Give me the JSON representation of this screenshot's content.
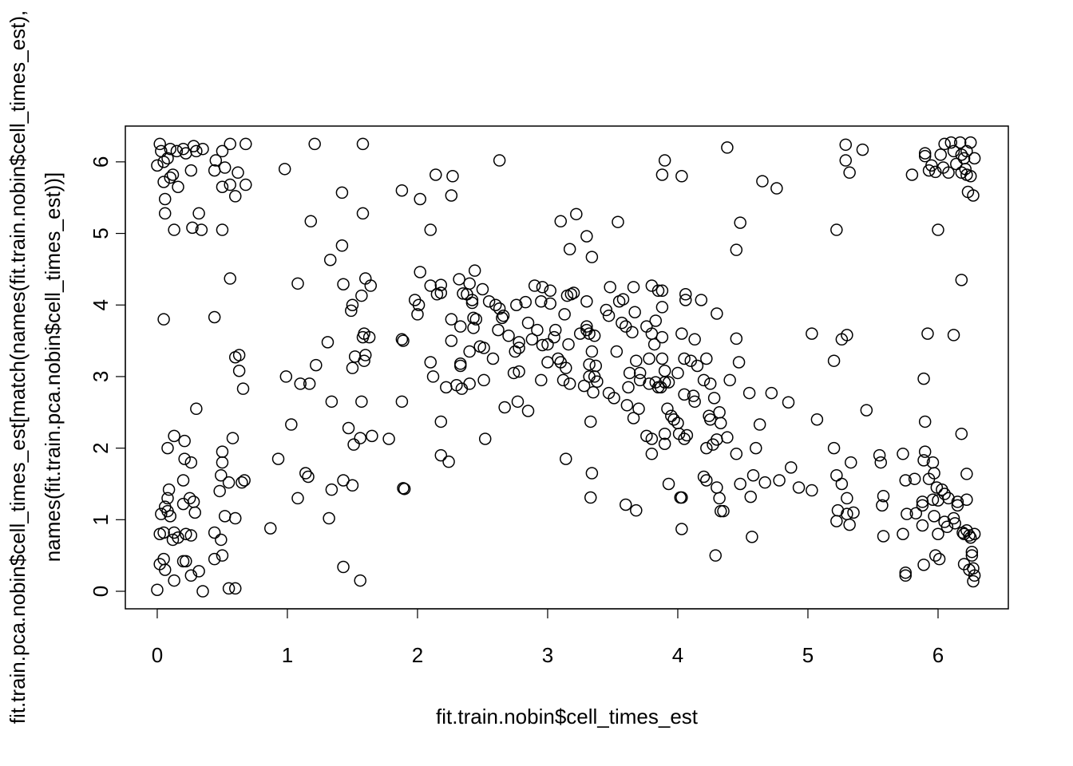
{
  "chart_data": {
    "type": "scatter",
    "xlabel": "fit.train.nobin$cell_times_est",
    "ylabel": [
      "fit.train.pca.nobin$cell_times_est[match(names(fit.train.nobin$cell_times_est),",
      "names(fit.train.pca.nobin$cell_times_est))]"
    ],
    "xlim": [
      -0.245,
      6.54
    ],
    "ylim": [
      -0.245,
      6.5
    ],
    "xticks": [
      0,
      1,
      2,
      3,
      4,
      5,
      6
    ],
    "yticks": [
      0,
      1,
      2,
      3,
      4,
      5,
      6
    ],
    "color": "#000000",
    "grid": false,
    "x": [
      0.02,
      0.03,
      0.05,
      0.0,
      0.1,
      0.08,
      0.15,
      0.2,
      0.22,
      0.28,
      0.3,
      0.35,
      0.26,
      0.12,
      0.05,
      0.1,
      0.16,
      0.06,
      0.06,
      0.13,
      0.27,
      0.32,
      0.34,
      0.45,
      0.44,
      0.5,
      0.56,
      0.68,
      0.52,
      0.5,
      0.56,
      0.6,
      0.62,
      0.68,
      0.5,
      0.56,
      0.05,
      0.44,
      0.0,
      0.02,
      0.05,
      0.06,
      0.02,
      0.05,
      0.03,
      0.06,
      0.08,
      0.08,
      0.09,
      0.1,
      0.08,
      0.13,
      0.13,
      0.12,
      0.16,
      0.13,
      0.2,
      0.22,
      0.22,
      0.26,
      0.2,
      0.25,
      0.28,
      0.29,
      0.2,
      0.21,
      0.26,
      0.21,
      0.3,
      0.26,
      0.32,
      0.35,
      0.44,
      0.44,
      0.49,
      0.5,
      0.48,
      0.49,
      0.5,
      0.5,
      0.52,
      0.55,
      0.58,
      0.6,
      0.55,
      0.6,
      0.6,
      0.63,
      0.63,
      0.66,
      0.65,
      0.67,
      0.87,
      0.93,
      0.98,
      0.99,
      1.03,
      1.08,
      1.08,
      1.1,
      1.14,
      1.16,
      1.17,
      1.18,
      1.21,
      1.22,
      1.31,
      1.32,
      1.33,
      1.34,
      1.34,
      1.42,
      1.42,
      1.43,
      1.43,
      1.43,
      1.47,
      1.49,
      1.5,
      1.5,
      1.5,
      1.51,
      1.52,
      1.56,
      1.56,
      1.57,
      1.58,
      1.58,
      1.57,
      1.58,
      1.59,
      1.6,
      1.6,
      1.59,
      1.63,
      1.64,
      1.65,
      1.78,
      1.88,
      1.88,
      1.88,
      1.89,
      1.89,
      1.9,
      1.98,
      2.0,
      2.01,
      2.02,
      2.02,
      2.1,
      2.1,
      2.1,
      2.12,
      2.14,
      2.15,
      2.18,
      2.18,
      2.18,
      2.18,
      2.22,
      2.24,
      2.26,
      2.26,
      2.26,
      2.27,
      2.3,
      2.32,
      2.33,
      2.33,
      2.33,
      2.34,
      2.35,
      2.38,
      2.4,
      2.4,
      2.42,
      2.42,
      2.43,
      2.43,
      2.44,
      2.45,
      2.4,
      2.48,
      2.5,
      2.51,
      2.51,
      2.52,
      2.55,
      2.58,
      2.6,
      2.62,
      2.63,
      2.63,
      2.65,
      2.66,
      2.67,
      2.7,
      2.74,
      2.75,
      2.76,
      2.77,
      2.78,
      2.78,
      2.78,
      2.83,
      2.85,
      2.85,
      2.88,
      2.9,
      2.92,
      2.95,
      2.95,
      2.96,
      2.96,
      3.0,
      3.0,
      3.02,
      3.02,
      3.05,
      3.06,
      3.08,
      3.1,
      3.1,
      3.12,
      3.13,
      3.14,
      3.14,
      3.15,
      3.16,
      3.17,
      3.17,
      3.18,
      3.2,
      3.22,
      3.25,
      3.28,
      3.3,
      3.3,
      3.3,
      3.3,
      3.32,
      3.32,
      3.32,
      3.33,
      3.33,
      3.34,
      3.34,
      3.34,
      3.35,
      3.36,
      3.36,
      3.37,
      3.38,
      3.45,
      3.47,
      3.47,
      3.48,
      3.51,
      3.53,
      3.54,
      3.55,
      3.57,
      3.58,
      3.6,
      3.6,
      3.61,
      3.62,
      3.63,
      3.65,
      3.66,
      3.66,
      3.67,
      3.68,
      3.68,
      3.7,
      3.71,
      3.71,
      3.76,
      3.76,
      3.78,
      3.78,
      3.8,
      3.8,
      3.8,
      3.8,
      3.82,
      3.83,
      3.83,
      3.85,
      3.85,
      3.87,
      3.88,
      3.88,
      3.88,
      3.88,
      3.88,
      3.9,
      3.9,
      3.9,
      3.9,
      3.9,
      3.92,
      3.93,
      3.93,
      3.95,
      3.97,
      4.0,
      4.0,
      4.01,
      4.02,
      4.03,
      4.03,
      4.03,
      4.03,
      4.05,
      4.05,
      4.05,
      4.06,
      4.06,
      4.07,
      4.1,
      4.12,
      4.13,
      4.13,
      4.15,
      4.18,
      4.2,
      4.2,
      4.22,
      4.22,
      4.22,
      4.24,
      4.25,
      4.25,
      4.27,
      4.28,
      4.29,
      4.3,
      4.3,
      4.3,
      4.32,
      4.32,
      4.33,
      4.33,
      4.35,
      4.38,
      4.38,
      4.4,
      4.45,
      4.45,
      4.45,
      4.47,
      4.48,
      4.48,
      4.55,
      4.56,
      4.57,
      4.58,
      4.6,
      4.63,
      4.65,
      4.67,
      4.72,
      4.76,
      4.78,
      4.85,
      4.87,
      4.93,
      5.03,
      5.03,
      5.07,
      5.2,
      5.2,
      5.22,
      5.22,
      5.22,
      5.23,
      5.26,
      5.26,
      5.29,
      5.29,
      5.3,
      5.3,
      5.3,
      5.32,
      5.32,
      5.33,
      5.35,
      5.42,
      5.45,
      5.55,
      5.56,
      5.57,
      5.58,
      5.58,
      5.73,
      5.73,
      5.75,
      5.75,
      5.75,
      5.76,
      5.8,
      5.82,
      5.83,
      5.88,
      5.88,
      5.88,
      5.89,
      5.89,
      5.89,
      5.9,
      5.9,
      5.9,
      5.9,
      5.92,
      5.93,
      5.93,
      5.95,
      5.96,
      5.96,
      5.97,
      5.97,
      5.98,
      5.98,
      5.99,
      6.0,
      6.0,
      6.0,
      6.01,
      6.02,
      6.03,
      6.04,
      6.05,
      6.05,
      6.05,
      6.07,
      6.08,
      6.08,
      6.1,
      6.12,
      6.12,
      6.12,
      6.13,
      6.14,
      6.15,
      6.15,
      6.17,
      6.18,
      6.18,
      6.18,
      6.18,
      6.19,
      6.2,
      6.2,
      6.2,
      6.21,
      6.22,
      6.22,
      6.22,
      6.22,
      6.22,
      6.23,
      6.24,
      6.24,
      6.25,
      6.25,
      6.25,
      6.26,
      6.26,
      6.27,
      6.27,
      6.27,
      6.28,
      6.28,
      6.28
    ],
    "values": [
      6.25,
      6.15,
      6.0,
      5.95,
      6.18,
      6.05,
      6.15,
      6.18,
      6.12,
      6.22,
      6.15,
      6.18,
      5.88,
      5.82,
      5.72,
      5.78,
      5.65,
      5.48,
      5.28,
      5.05,
      5.08,
      5.28,
      5.05,
      6.02,
      5.88,
      6.15,
      6.25,
      6.25,
      5.92,
      5.65,
      5.68,
      5.52,
      5.85,
      5.68,
      5.05,
      4.37,
      3.8,
      3.83,
      0.02,
      0.38,
      0.45,
      0.3,
      0.8,
      0.82,
      1.08,
      1.18,
      1.12,
      1.3,
      1.42,
      1.05,
      2.0,
      2.17,
      0.82,
      0.72,
      0.75,
      0.15,
      0.42,
      0.42,
      0.8,
      0.78,
      1.22,
      1.3,
      1.25,
      1.1,
      1.55,
      1.85,
      1.8,
      2.1,
      2.55,
      0.22,
      0.28,
      0.0,
      0.45,
      0.82,
      0.72,
      0.5,
      1.4,
      1.62,
      1.8,
      1.95,
      1.05,
      1.52,
      2.14,
      1.02,
      0.04,
      0.04,
      3.27,
      3.3,
      3.08,
      2.83,
      1.52,
      1.55,
      0.88,
      1.85,
      5.9,
      3.0,
      2.33,
      1.3,
      4.3,
      2.9,
      1.65,
      1.6,
      2.9,
      5.17,
      6.25,
      3.16,
      3.48,
      1.02,
      4.63,
      1.42,
      2.65,
      5.57,
      4.83,
      4.29,
      1.55,
      0.34,
      2.28,
      3.92,
      4.0,
      3.12,
      1.48,
      2.05,
      3.28,
      0.15,
      2.14,
      4.13,
      5.28,
      6.25,
      2.65,
      3.55,
      3.6,
      4.37,
      3.3,
      3.22,
      3.55,
      4.27,
      2.17,
      2.13,
      5.6,
      2.65,
      3.52,
      3.5,
      1.44,
      1.43,
      4.07,
      3.87,
      4.0,
      4.46,
      5.48,
      4.27,
      5.05,
      3.2,
      3.0,
      5.82,
      4.15,
      4.28,
      4.17,
      2.37,
      1.9,
      2.85,
      1.81,
      3.5,
      3.8,
      5.53,
      5.8,
      2.88,
      4.36,
      3.7,
      3.15,
      3.18,
      2.83,
      4.16,
      4.15,
      4.3,
      3.35,
      4.07,
      4.03,
      3.82,
      3.68,
      4.48,
      3.8,
      2.9,
      3.42,
      4.22,
      3.4,
      2.95,
      2.13,
      4.05,
      3.25,
      4.0,
      3.65,
      6.02,
      3.95,
      3.82,
      3.85,
      2.57,
      3.57,
      3.05,
      3.35,
      4.0,
      2.65,
      3.4,
      3.48,
      3.07,
      4.04,
      2.52,
      3.75,
      3.52,
      4.27,
      3.65,
      2.95,
      4.05,
      4.25,
      3.44,
      3.45,
      3.2,
      4.2,
      4.02,
      3.55,
      3.65,
      3.25,
      3.2,
      5.17,
      2.95,
      3.87,
      3.12,
      1.85,
      4.13,
      3.45,
      4.78,
      2.9,
      4.15,
      4.17,
      5.27,
      3.6,
      2.87,
      4.96,
      3.7,
      3.65,
      4.05,
      3.6,
      3.0,
      3.17,
      1.31,
      2.37,
      1.65,
      4.67,
      3.35,
      2.78,
      3.57,
      3.0,
      3.15,
      2.93,
      3.93,
      3.85,
      2.77,
      4.25,
      2.7,
      3.35,
      5.16,
      4.05,
      3.75,
      4.08,
      3.7,
      1.21,
      2.6,
      2.85,
      3.05,
      3.62,
      2.42,
      4.25,
      3.9,
      3.22,
      1.13,
      2.55,
      3.05,
      2.95,
      3.7,
      2.17,
      3.25,
      2.9,
      3.6,
      4.27,
      2.13,
      1.92,
      3.45,
      3.78,
      2.92,
      4.2,
      2.85,
      2.85,
      5.82,
      3.97,
      4.2,
      3.55,
      3.25,
      3.08,
      2.2,
      2.06,
      6.02,
      2.92,
      2.55,
      2.92,
      1.5,
      2.45,
      2.4,
      2.35,
      3.05,
      2.2,
      1.31,
      0.87,
      5.8,
      1.31,
      3.6,
      2.75,
      2.13,
      3.25,
      4.15,
      4.07,
      2.18,
      3.22,
      2.73,
      3.52,
      2.65,
      3.15,
      4.07,
      2.95,
      1.6,
      2.0,
      1.55,
      3.25,
      2.45,
      2.4,
      2.9,
      2.05,
      2.7,
      0.5,
      2.12,
      3.88,
      1.45,
      1.3,
      2.5,
      2.35,
      1.12,
      1.12,
      6.2,
      2.15,
      2.95,
      3.53,
      4.77,
      1.92,
      3.2,
      1.5,
      5.15,
      2.77,
      1.32,
      0.76,
      1.62,
      2.0,
      2.33,
      5.73,
      1.52,
      2.77,
      5.63,
      1.55,
      2.64,
      1.73,
      1.45,
      3.6,
      1.41,
      2.4,
      3.22,
      2.0,
      5.05,
      1.62,
      0.98,
      1.13,
      3.52,
      1.5,
      6.24,
      6.02,
      3.58,
      1.3,
      1.08,
      5.85,
      0.93,
      1.8,
      1.1,
      6.17,
      2.53,
      1.9,
      1.8,
      1.2,
      1.33,
      0.77,
      1.92,
      0.8,
      0.26,
      0.22,
      1.55,
      1.08,
      5.82,
      1.57,
      1.09,
      1.25,
      1.2,
      0.92,
      0.37,
      1.83,
      2.97,
      6.12,
      6.08,
      2.37,
      1.95,
      3.6,
      5.88,
      1.57,
      5.95,
      1.28,
      1.8,
      1.05,
      1.65,
      0.5,
      5.86,
      1.45,
      1.27,
      5.05,
      0.8,
      0.45,
      6.1,
      1.42,
      5.92,
      6.25,
      0.97,
      1.36,
      0.9,
      5.85,
      1.3,
      6.27,
      6.15,
      3.58,
      1.02,
      0.95,
      5.97,
      1.2,
      1.25,
      6.27,
      6.1,
      5.85,
      4.35,
      2.2,
      0.82,
      0.38,
      0.8,
      6.05,
      5.9,
      6.15,
      5.82,
      1.64,
      1.28,
      0.85,
      5.58,
      0.78,
      0.3,
      6.27,
      5.8,
      0.75,
      0.5,
      0.55,
      0.14,
      0.32,
      5.53,
      6.05,
      0.22,
      0.8
    ]
  }
}
